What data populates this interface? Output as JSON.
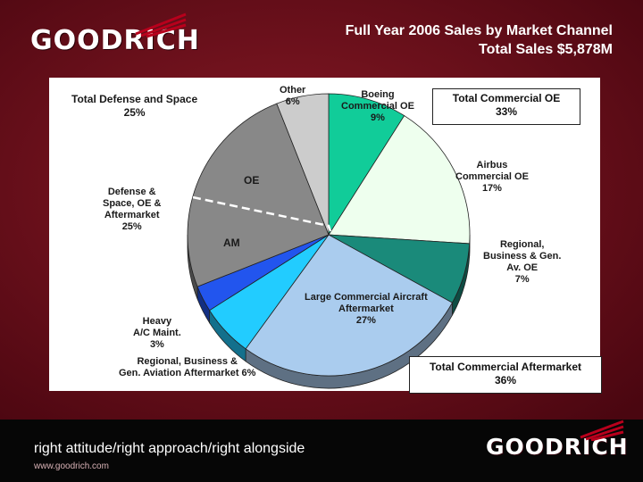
{
  "header": {
    "logo_text": "GOODRICH",
    "title_line1": "Full Year 2006 Sales by Market Channel",
    "title_line2": "Total Sales $5,878M"
  },
  "footer": {
    "tagline": "right attitude/right approach/right alongside",
    "url": "www.goodrich.com",
    "logo_text": "GOODRICH"
  },
  "chart_data": {
    "type": "pie",
    "title": "Full Year 2006 Sales by Market Channel",
    "subtitle": "Total Sales $5,878M",
    "slices": [
      {
        "label": "Boeing Commercial OE",
        "value": 9,
        "color": "#11cc99"
      },
      {
        "label": "Airbus Commercial OE",
        "value": 17,
        "color": "#eeffee"
      },
      {
        "label": "Regional, Business & Gen. Av. OE",
        "value": 7,
        "color": "#1a8a7a"
      },
      {
        "label": "Large Commercial Aircraft Aftermarket",
        "value": 27,
        "color": "#aaccee"
      },
      {
        "label": "Regional, Business & Gen. Aviation Aftermarket",
        "value": 6,
        "color": "#22ccff"
      },
      {
        "label": "Heavy A/C Maint.",
        "value": 3,
        "color": "#2255ee"
      },
      {
        "label": "Defense & Space, OE & Aftermarket",
        "value": 25,
        "color": "#888888"
      },
      {
        "label": "Other",
        "value": 6,
        "color": "#cccccc"
      }
    ],
    "groups": [
      {
        "label": "Total Commercial OE",
        "value": 33
      },
      {
        "label": "Total Commercial Aftermarket",
        "value": 36
      },
      {
        "label": "Total Defense and Space",
        "value": 25
      }
    ],
    "annotations": [
      "OE",
      "AM"
    ],
    "labels": {
      "boeing": [
        "Boeing",
        "Commercial OE",
        "9%"
      ],
      "airbus": [
        "Airbus",
        "Commercial OE",
        "17%"
      ],
      "regional_oe": [
        "Regional,",
        "Business & Gen.",
        "Av. OE",
        "7%"
      ],
      "lca": [
        "Large Commercial Aircraft",
        "Aftermarket",
        "27%"
      ],
      "regional_am": [
        "Regional, Business &",
        "Gen.  Aviation Aftermarket 6%"
      ],
      "heavy": [
        "Heavy",
        "A/C Maint.",
        "3%"
      ],
      "defense": [
        "Defense &",
        "Space, OE &",
        "Aftermarket",
        "25%"
      ],
      "other": [
        "Other",
        "6%"
      ],
      "total_def": [
        "Total Defense and Space",
        "25%"
      ],
      "total_oe": [
        "Total Commercial OE",
        "33%"
      ],
      "total_am": [
        "Total Commercial Aftermarket",
        "36%"
      ],
      "oe": "OE",
      "am": "AM"
    }
  }
}
